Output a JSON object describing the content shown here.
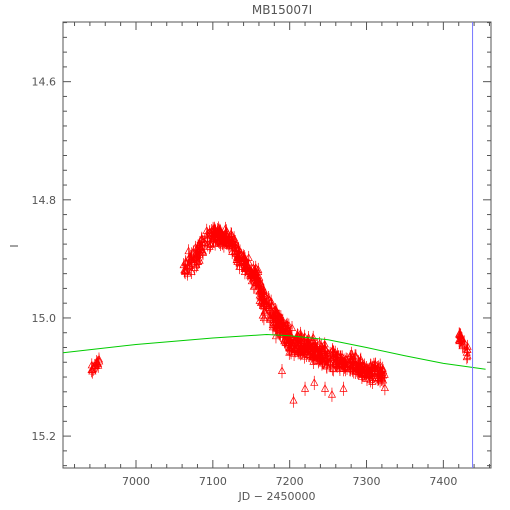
{
  "chart_data": {
    "type": "scatter",
    "title": "MB15007I",
    "xlabel": "JD − 2450000",
    "ylabel": "I",
    "xlim": [
      6905,
      7462
    ],
    "ylim": [
      15.254,
      14.499
    ],
    "y_inverted": true,
    "x_ticks": [
      7000,
      7100,
      7200,
      7300,
      7400
    ],
    "x_tick_labels": [
      "7000",
      "7100",
      "7200",
      "7300",
      "7400"
    ],
    "y_ticks": [
      14.6,
      14.8,
      15.0,
      15.2
    ],
    "y_tick_labels": [
      "14.6",
      "14.8",
      "15.0",
      "15.2"
    ],
    "grid": false,
    "colors": {
      "points": "#ff0000",
      "model": "#00cc00",
      "marker_line": "#7777ff",
      "axes": "#555555"
    },
    "observations": {
      "marker": "open-triangle",
      "error_bar": 0.012,
      "segments": [
        {
          "x": [
            6940,
            6958
          ],
          "y": [
            15.09,
            15.07
          ],
          "count": 14,
          "scatter": 0.014
        },
        {
          "x": [
            7062,
            7100
          ],
          "y": [
            14.92,
            14.86
          ],
          "count": 70,
          "scatter": 0.025
        },
        {
          "x": [
            7100,
            7125
          ],
          "y": [
            14.86,
            14.87
          ],
          "count": 80,
          "scatter": 0.02
        },
        {
          "x": [
            7125,
            7160
          ],
          "y": [
            14.88,
            14.94
          ],
          "count": 90,
          "scatter": 0.025
        },
        {
          "x": [
            7160,
            7200
          ],
          "y": [
            14.96,
            15.04
          ],
          "count": 130,
          "scatter": 0.035
        },
        {
          "x": [
            7200,
            7260
          ],
          "y": [
            15.04,
            15.07
          ],
          "count": 160,
          "scatter": 0.03
        },
        {
          "x": [
            7260,
            7325
          ],
          "y": [
            15.07,
            15.1
          ],
          "count": 150,
          "scatter": 0.022
        },
        {
          "x": [
            7420,
            7432
          ],
          "y": [
            15.03,
            15.06
          ],
          "count": 22,
          "scatter": 0.015
        }
      ],
      "outliers": [
        {
          "x": 7205,
          "y": 15.14
        },
        {
          "x": 7220,
          "y": 15.12
        },
        {
          "x": 7232,
          "y": 15.11
        },
        {
          "x": 7246,
          "y": 15.12
        },
        {
          "x": 7190,
          "y": 15.09
        },
        {
          "x": 7255,
          "y": 15.13
        },
        {
          "x": 7270,
          "y": 15.12
        }
      ]
    },
    "model_curve": {
      "x": [
        6905,
        7000,
        7100,
        7170,
        7200,
        7250,
        7300,
        7350,
        7400,
        7455
      ],
      "y": [
        15.059,
        15.045,
        15.034,
        15.028,
        15.03,
        15.037,
        15.05,
        15.064,
        15.077,
        15.087
      ]
    },
    "vertical_marker_x": 7438
  }
}
